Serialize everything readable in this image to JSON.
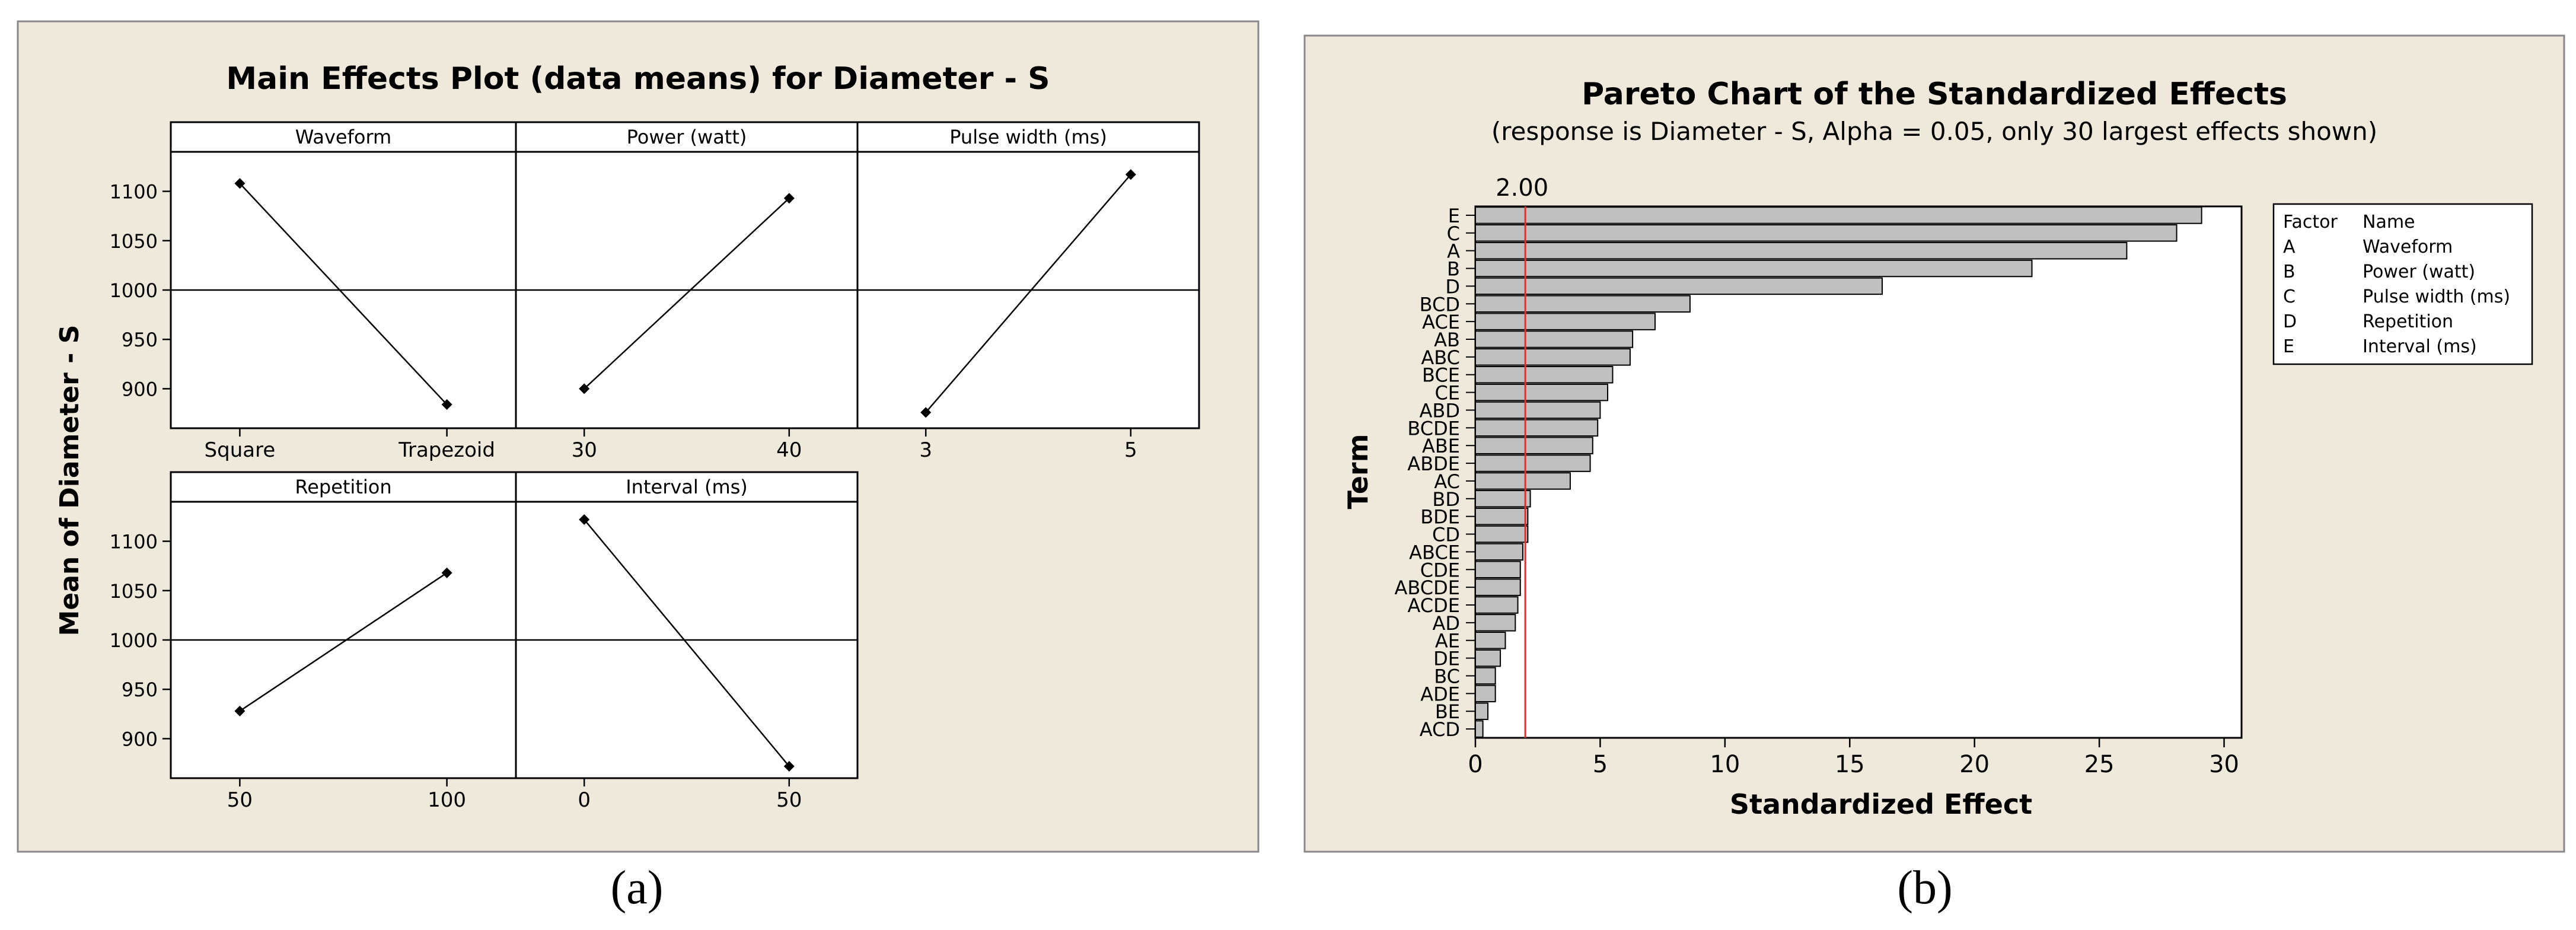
{
  "colors": {
    "panel_bg": "#efe9dc",
    "bar_fill": "#c0c0c0",
    "ref_line": "#e03030",
    "line": "#000000"
  },
  "captions": {
    "a": "(a)",
    "b": "(b)"
  },
  "chart_data": [
    {
      "type": "line",
      "title": "Main Effects Plot (data means) for Diameter - S",
      "ylabel": "Mean of Diameter - S",
      "ylim": [
        860,
        1140
      ],
      "yticks": [
        900,
        950,
        1000,
        1050,
        1100
      ],
      "reference_y": 1000,
      "panels": [
        {
          "name": "Waveform",
          "x": [
            "Square",
            "Trapezoid"
          ],
          "y": [
            1108,
            884
          ]
        },
        {
          "name": "Power (watt)",
          "x": [
            "30",
            "40"
          ],
          "y": [
            900,
            1093
          ]
        },
        {
          "name": "Pulse width (ms)",
          "x": [
            "3",
            "5"
          ],
          "y": [
            876,
            1117
          ]
        },
        {
          "name": "Repetition",
          "x": [
            "50",
            "100"
          ],
          "y": [
            928,
            1068
          ]
        },
        {
          "name": "Interval (ms)",
          "x": [
            "0",
            "50"
          ],
          "y": [
            1122,
            872
          ]
        }
      ]
    },
    {
      "type": "bar",
      "orientation": "horizontal",
      "title": "Pareto Chart of the Standardized Effects",
      "subtitle": "(response is Diameter - S, Alpha = 0.05, only 30 largest effects shown)",
      "xlabel": "Standardized Effect",
      "ylabel": "Term",
      "xlim": [
        0,
        30.7
      ],
      "xticks": [
        0,
        5,
        10,
        15,
        20,
        25,
        30
      ],
      "reference_value": 2.0,
      "reference_label": "2.00",
      "categories": [
        "E",
        "C",
        "A",
        "B",
        "D",
        "BCD",
        "ACE",
        "AB",
        "ABC",
        "BCE",
        "CE",
        "ABD",
        "BCDE",
        "ABE",
        "ABDE",
        "AC",
        "BD",
        "BDE",
        "CD",
        "ABCE",
        "CDE",
        "ABCDE",
        "ACDE",
        "AD",
        "AE",
        "DE",
        "BC",
        "ADE",
        "BE",
        "ACD"
      ],
      "values": [
        29.1,
        28.1,
        26.1,
        22.3,
        16.3,
        8.6,
        7.2,
        6.3,
        6.2,
        5.5,
        5.3,
        5.0,
        4.9,
        4.7,
        4.6,
        3.8,
        2.2,
        2.1,
        2.1,
        1.9,
        1.8,
        1.8,
        1.7,
        1.6,
        1.2,
        1.0,
        0.8,
        0.8,
        0.5,
        0.3
      ],
      "legend": {
        "headers": [
          "Factor",
          "Name"
        ],
        "rows": [
          [
            "A",
            "Waveform"
          ],
          [
            "B",
            "Power (watt)"
          ],
          [
            "C",
            "Pulse width (ms)"
          ],
          [
            "D",
            "Repetition"
          ],
          [
            "E",
            "Interval (ms)"
          ]
        ]
      }
    }
  ]
}
